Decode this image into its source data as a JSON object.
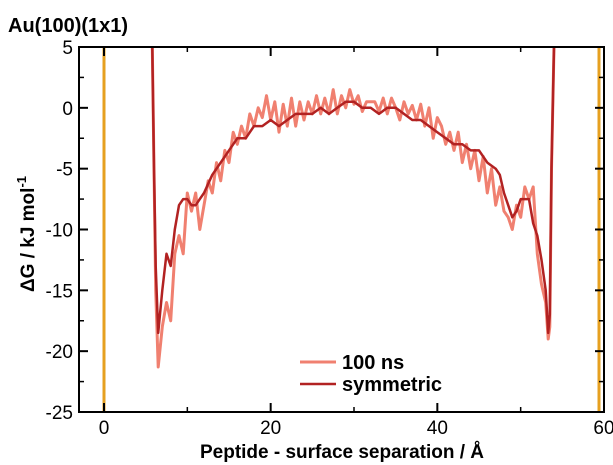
{
  "chart_data": {
    "type": "line",
    "title": "Au(100)(1x1)",
    "xlabel": "Peptide - surface separation / Å",
    "ylabel_prefix": "ΔG / kJ mol",
    "ylabel_sup": "-1",
    "xlim": [
      -3,
      60
    ],
    "ylim": [
      -25,
      5
    ],
    "xticks": [
      0,
      20,
      40,
      60
    ],
    "xtick_labels": [
      "0",
      "20",
      "40",
      "60"
    ],
    "yticks": [
      5,
      0,
      -5,
      -10,
      -15,
      -20,
      -25
    ],
    "ytick_labels": [
      "5",
      "0",
      "-5",
      "-10",
      "-15",
      "-20",
      "-25"
    ],
    "minor_xticks": [
      10,
      30,
      50
    ],
    "minor_yticks": [
      2.5,
      -2.5,
      -7.5,
      -12.5,
      -17.5,
      -22.5
    ],
    "grid": false,
    "legend_position": "bottom-center",
    "vlines": [
      {
        "x": 0,
        "color": "#E6A020"
      },
      {
        "x": 59.4,
        "color": "#E6A020"
      }
    ],
    "series": [
      {
        "name": "100 ns",
        "color": "#F08070",
        "x": [
          5.8,
          6.0,
          6.2,
          6.5,
          7.0,
          7.5,
          8.0,
          8.5,
          9.0,
          9.5,
          10.0,
          10.5,
          11.0,
          11.5,
          12.0,
          12.5,
          13.0,
          13.5,
          14.0,
          14.5,
          15.0,
          15.5,
          16.0,
          16.5,
          17.0,
          17.5,
          18.0,
          18.5,
          19.0,
          19.5,
          20.0,
          20.5,
          21.0,
          21.5,
          22.0,
          22.5,
          23.0,
          23.5,
          24.0,
          24.5,
          25.0,
          25.5,
          26.0,
          26.5,
          27.0,
          27.5,
          28.0,
          28.5,
          29.0,
          29.5,
          30.0,
          30.5,
          31.0,
          31.5,
          32.0,
          32.5,
          33.0,
          33.5,
          34.0,
          34.5,
          35.0,
          35.5,
          36.0,
          36.5,
          37.0,
          37.5,
          38.0,
          38.5,
          39.0,
          39.5,
          40.0,
          40.5,
          41.0,
          41.5,
          42.0,
          42.5,
          43.0,
          43.5,
          44.0,
          44.5,
          45.0,
          45.5,
          46.0,
          46.5,
          47.0,
          47.5,
          48.0,
          48.5,
          49.0,
          49.5,
          50.0,
          50.5,
          51.0,
          51.5,
          52.0,
          52.5,
          53.0,
          53.3,
          53.5,
          53.7,
          54.0
        ],
        "y": [
          5,
          -5,
          -15,
          -21.3,
          -18,
          -16,
          -17.5,
          -12,
          -10.5,
          -12,
          -7,
          -8.5,
          -7,
          -10,
          -8,
          -6,
          -7,
          -4.5,
          -6,
          -3.5,
          -4.5,
          -2,
          -3,
          -1.5,
          -2.5,
          -0.5,
          -1.5,
          0,
          -0.8,
          1,
          -1,
          0.5,
          -2,
          0.3,
          -1.5,
          0.8,
          -1.5,
          0.5,
          -1,
          0.5,
          -0.5,
          1,
          -0.5,
          0.8,
          -0.5,
          1.5,
          -0.5,
          1,
          0,
          1.5,
          0.3,
          1,
          -0.3,
          0.5,
          0.5,
          0.5,
          -0.3,
          0.8,
          -0.5,
          0.8,
          0,
          -1,
          0.5,
          -0.5,
          0.2,
          -1,
          0.3,
          -1.5,
          0,
          -2.5,
          -0.8,
          -1.5,
          -3,
          -2,
          -3.5,
          -2,
          -4.5,
          -3,
          -5,
          -3.5,
          -6,
          -4,
          -7,
          -5,
          -8,
          -6.5,
          -8.5,
          -9,
          -10,
          -8,
          -9,
          -6.5,
          -7.5,
          -6.5,
          -12,
          -14.5,
          -16,
          -19,
          -18,
          -5,
          5
        ]
      },
      {
        "name": "symmetric",
        "color": "#B22222",
        "x": [
          5.8,
          6.0,
          6.2,
          6.5,
          7.0,
          7.5,
          8.0,
          8.5,
          9.0,
          9.5,
          10.0,
          10.5,
          11.0,
          11.5,
          12.0,
          13.0,
          14.0,
          15.0,
          16.0,
          17.0,
          18.0,
          19.0,
          20.0,
          21.0,
          22.0,
          23.0,
          24.0,
          25.0,
          26.0,
          27.0,
          28.0,
          29.0,
          30.0,
          31.0,
          32.0,
          33.0,
          34.0,
          35.0,
          36.0,
          37.0,
          38.0,
          39.0,
          40.0,
          41.0,
          42.0,
          43.0,
          44.0,
          45.0,
          46.0,
          47.0,
          47.5,
          48.0,
          48.5,
          49.0,
          49.5,
          50.0,
          50.5,
          51.0,
          51.5,
          52.0,
          52.5,
          53.0,
          53.3,
          53.5,
          53.7,
          54.0
        ],
        "y": [
          5,
          -5,
          -13,
          -18.5,
          -15,
          -12,
          -13,
          -10,
          -8,
          -7.5,
          -7.5,
          -8,
          -8,
          -7.5,
          -7,
          -5.5,
          -4.5,
          -3.5,
          -2.5,
          -2.5,
          -1.5,
          -1.5,
          -1,
          -1.5,
          -1,
          -0.5,
          -0.5,
          -0.5,
          0,
          -0.5,
          0,
          0.5,
          0.5,
          0,
          0,
          -0.5,
          0,
          0,
          -0.5,
          -1,
          -1,
          -1.5,
          -2,
          -2.5,
          -3,
          -3,
          -3.5,
          -3.5,
          -4.5,
          -5,
          -5.5,
          -7,
          -8,
          -9,
          -8.5,
          -7.5,
          -7.5,
          -7.5,
          -9.5,
          -10.5,
          -12.5,
          -15,
          -18.5,
          -17,
          -5,
          5
        ]
      }
    ]
  }
}
